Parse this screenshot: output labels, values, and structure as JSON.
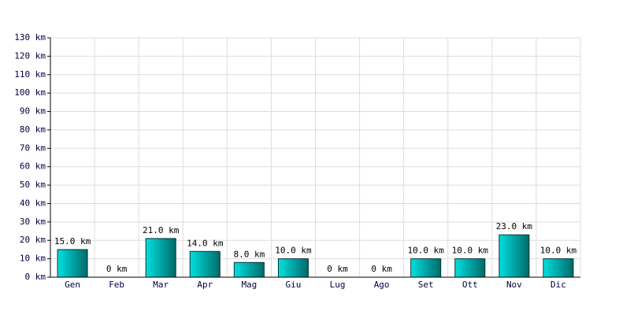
{
  "chart_data": {
    "type": "bar",
    "categories": [
      "Gen",
      "Feb",
      "Mar",
      "Apr",
      "Mag",
      "Giu",
      "Lug",
      "Ago",
      "Set",
      "Ott",
      "Nov",
      "Dic"
    ],
    "values": [
      15,
      0,
      21,
      14,
      8,
      10,
      0,
      0,
      10,
      10,
      23,
      10
    ],
    "value_labels": [
      "15.0 km",
      "0 km",
      "21.0 km",
      "14.0 km",
      "8.0 km",
      "10.0 km",
      "0 km",
      "0 km",
      "10.0 km",
      "10.0 km",
      "23.0 km",
      "10.0 km"
    ],
    "color": "#00e0e0",
    "ylim": [
      0,
      130
    ],
    "yticks": [
      {
        "value": 0,
        "label": "0 km"
      },
      {
        "value": 10,
        "label": "10 km"
      },
      {
        "value": 20,
        "label": "20 km"
      },
      {
        "value": 30,
        "label": "30 km"
      },
      {
        "value": 40,
        "label": "40 km"
      },
      {
        "value": 50,
        "label": "50 km"
      },
      {
        "value": 60,
        "label": "60 km"
      },
      {
        "value": 70,
        "label": "70 km"
      },
      {
        "value": 80,
        "label": "80 km"
      },
      {
        "value": 90,
        "label": "90 km"
      },
      {
        "value": 100,
        "label": "100 km"
      },
      {
        "value": 110,
        "label": "110 km"
      },
      {
        "value": 120,
        "label": "120 km"
      },
      {
        "value": 130,
        "label": "130 km"
      }
    ],
    "grid": true
  }
}
